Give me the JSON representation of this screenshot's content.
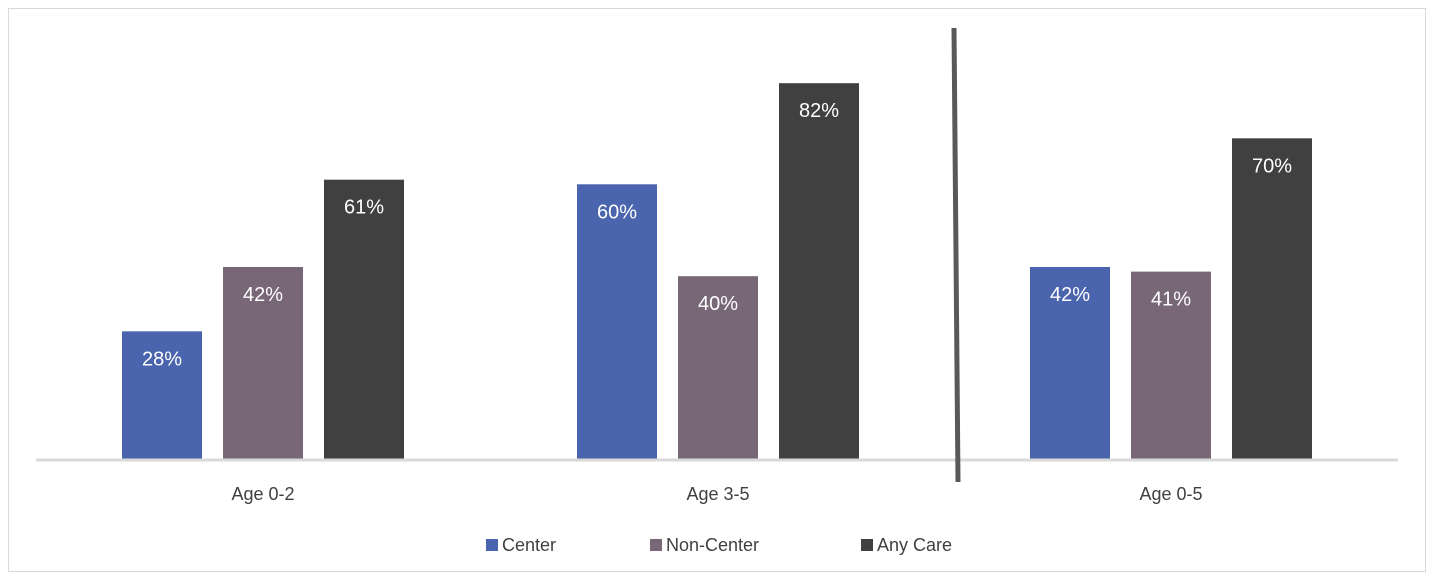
{
  "chart_data": {
    "type": "bar",
    "categories": [
      "Age 0-2",
      "Age 3-5",
      "Age 0-5"
    ],
    "series": [
      {
        "name": "Center",
        "values": [
          28,
          60,
          42
        ],
        "labels": [
          "28%",
          "60%",
          "42%"
        ],
        "color": "#4a65ad"
      },
      {
        "name": "Non-Center",
        "values": [
          42,
          40,
          41
        ],
        "labels": [
          "42%",
          "40%",
          "41%"
        ],
        "color": "#776777"
      },
      {
        "name": "Any Care",
        "values": [
          61,
          82,
          70
        ],
        "labels": [
          "61%",
          "82%",
          "70%"
        ],
        "color": "#404040"
      }
    ],
    "ylim": [
      0,
      84
    ],
    "grid": false,
    "legend_position": "bottom",
    "divider_between": [
      "Age 3-5",
      "Age 0-5"
    ],
    "axis_color": "#d9d9d9",
    "divider_color": "#595959"
  }
}
